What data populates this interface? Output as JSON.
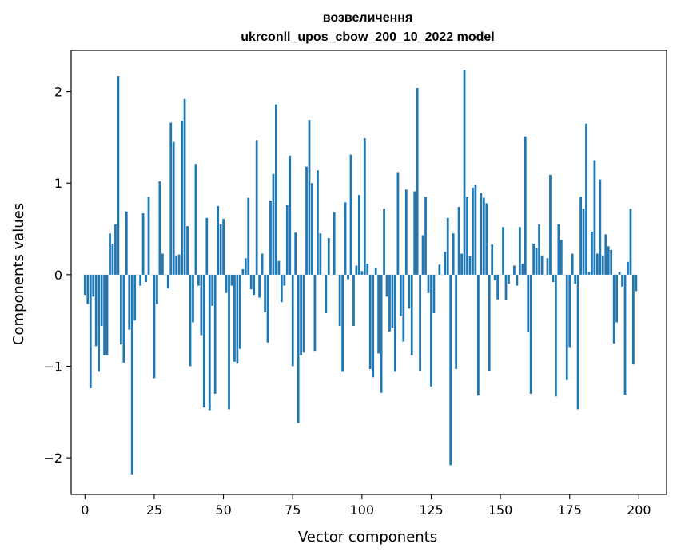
{
  "chart_data": {
    "type": "bar",
    "title": [
      "возвеличення",
      "ukrconll_upos_cbow_200_10_2022 model"
    ],
    "xlabel": "Vector components",
    "ylabel": "Components values",
    "xlim": [
      -5,
      210
    ],
    "ylim": [
      -2.4,
      2.45
    ],
    "xticks": [
      0,
      25,
      50,
      75,
      100,
      125,
      150,
      175,
      200
    ],
    "yticks": [
      -2,
      -1,
      0,
      1,
      2
    ],
    "ytick_labels": [
      "−2",
      "−1",
      "0",
      "1",
      "2"
    ],
    "grid": false,
    "bar_color": "#1f77b4",
    "x": [
      0,
      1,
      2,
      3,
      4,
      5,
      6,
      7,
      8,
      9,
      10,
      11,
      12,
      13,
      14,
      15,
      16,
      17,
      18,
      19,
      20,
      21,
      22,
      23,
      24,
      25,
      26,
      27,
      28,
      29,
      30,
      31,
      32,
      33,
      34,
      35,
      36,
      37,
      38,
      39,
      40,
      41,
      42,
      43,
      44,
      45,
      46,
      47,
      48,
      49,
      50,
      51,
      52,
      53,
      54,
      55,
      56,
      57,
      58,
      59,
      60,
      61,
      62,
      63,
      64,
      65,
      66,
      67,
      68,
      69,
      70,
      71,
      72,
      73,
      74,
      75,
      76,
      77,
      78,
      79,
      80,
      81,
      82,
      83,
      84,
      85,
      86,
      87,
      88,
      89,
      90,
      91,
      92,
      93,
      94,
      95,
      96,
      97,
      98,
      99,
      100,
      101,
      102,
      103,
      104,
      105,
      106,
      107,
      108,
      109,
      110,
      111,
      112,
      113,
      114,
      115,
      116,
      117,
      118,
      119,
      120,
      121,
      122,
      123,
      124,
      125,
      126,
      127,
      128,
      129,
      130,
      131,
      132,
      133,
      134,
      135,
      136,
      137,
      138,
      139,
      140,
      141,
      142,
      143,
      144,
      145,
      146,
      147,
      148,
      149,
      150,
      151,
      152,
      153,
      154,
      155,
      156,
      157,
      158,
      159,
      160,
      161,
      162,
      163,
      164,
      165,
      166,
      167,
      168,
      169,
      170,
      171,
      172,
      173,
      174,
      175,
      176,
      177,
      178,
      179,
      180,
      181,
      182,
      183,
      184,
      185,
      186,
      187,
      188,
      189,
      190,
      191,
      192,
      193,
      194,
      195,
      196,
      197,
      198,
      199
    ],
    "values": [
      -0.22,
      -0.32,
      -1.24,
      -0.24,
      -0.78,
      -1.06,
      -0.56,
      -0.88,
      -0.88,
      0.45,
      0.34,
      0.55,
      2.17,
      -0.76,
      -0.96,
      0.69,
      -0.6,
      -2.18,
      -0.5,
      0.0,
      -0.12,
      0.67,
      -0.08,
      0.85,
      0.0,
      -1.13,
      -0.32,
      1.02,
      0.23,
      0.0,
      -0.15,
      1.66,
      1.45,
      0.21,
      0.22,
      1.68,
      1.92,
      0.53,
      -1.0,
      -0.52,
      1.21,
      -0.12,
      -0.66,
      -1.45,
      0.62,
      -1.48,
      -0.34,
      -1.3,
      0.75,
      0.55,
      0.61,
      -0.2,
      -1.47,
      -0.12,
      -0.95,
      -0.97,
      -0.81,
      0.06,
      0.18,
      0.84,
      -0.16,
      -0.22,
      1.47,
      -0.25,
      0.23,
      -0.41,
      -0.74,
      0.81,
      1.1,
      1.86,
      0.15,
      -0.3,
      -0.12,
      0.76,
      1.3,
      -1.0,
      0.46,
      -1.62,
      -0.88,
      -0.85,
      1.18,
      1.69,
      1.0,
      -0.84,
      1.14,
      0.45,
      0.0,
      -0.42,
      0.4,
      0.0,
      0.68,
      0.0,
      -0.56,
      -1.06,
      0.79,
      -0.05,
      1.31,
      -0.56,
      0.1,
      0.87,
      0.04,
      1.49,
      0.12,
      -1.03,
      -1.12,
      0.07,
      -0.86,
      -1.29,
      0.72,
      -0.24,
      -0.62,
      -0.58,
      -1.06,
      1.12,
      -0.45,
      -0.73,
      0.93,
      -0.37,
      -0.88,
      0.91,
      2.04,
      -1.05,
      0.43,
      0.85,
      -0.2,
      -1.22,
      -0.42,
      0.0,
      0.11,
      0.0,
      0.25,
      0.62,
      -2.08,
      0.45,
      -1.03,
      0.74,
      0.23,
      2.24,
      0.85,
      0.2,
      0.95,
      0.98,
      -1.32,
      0.89,
      0.84,
      0.78,
      -1.05,
      0.33,
      -0.06,
      -0.27,
      0.0,
      0.52,
      -0.28,
      -0.1,
      0.0,
      0.1,
      -0.12,
      0.52,
      0.12,
      1.51,
      -0.63,
      -1.3,
      0.34,
      0.29,
      0.55,
      0.21,
      0.0,
      0.18,
      1.09,
      -0.08,
      -1.33,
      0.55,
      0.38,
      0.0,
      -1.15,
      -0.79,
      0.23,
      -0.1,
      -1.47,
      0.85,
      0.72,
      1.65,
      0.03,
      0.47,
      1.25,
      0.23,
      1.04,
      0.21,
      0.44,
      0.31,
      0.27,
      -0.75,
      -0.52,
      0.03,
      -0.13,
      -1.31,
      0.14,
      0.72,
      -0.98,
      -0.18
    ]
  }
}
